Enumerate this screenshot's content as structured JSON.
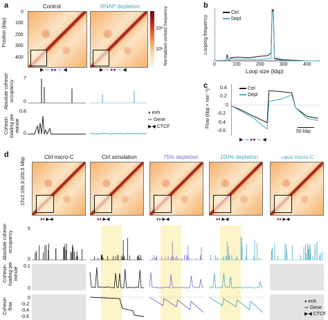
{
  "panel_a": {
    "label": "a",
    "headers": [
      "Control",
      "RNAP depletion"
    ],
    "y_axis_label": "Position (kbp)",
    "y_ticks": [
      "0",
      "100",
      "200",
      "300",
      "400"
    ],
    "colorbar_label": "Normalized contact frequency",
    "colorbar_ticks": [
      "10²",
      "10¹"
    ],
    "row_labels": [
      "Absolute cohesin occupancy",
      "Cohesin loading per minute"
    ],
    "occupancy_ticks": [
      "7",
      "0"
    ],
    "loading_ticks": [
      "0.8",
      "0"
    ],
    "legend": [
      {
        "icon": "♦",
        "label": "enh"
      },
      {
        "icon": "⇨",
        "label": "Gene"
      },
      {
        "icon": "▶◀",
        "label": "CTCF"
      }
    ]
  },
  "panel_b": {
    "label": "b",
    "ylabel": "Looping frequency",
    "xlabel": "Loop size (kbp)",
    "x_ticks": [
      "0",
      "100",
      "200",
      "300",
      "400"
    ],
    "legend": [
      "Ctrl",
      "Depl"
    ]
  },
  "panel_c": {
    "label": "c",
    "ylabel": "Flow (kbp × min⁻¹)",
    "y_ticks": [
      "0.4",
      "0.2",
      "0",
      "-0.2",
      "-0.4",
      "-0.6"
    ],
    "legend": [
      "Ctrl",
      "Depl"
    ],
    "scalebar": "50 kbp"
  },
  "panel_d": {
    "label": "d",
    "headers": [
      "Ctrl micro-C",
      "Ctrl simulation",
      "75% depletion",
      "100% depletion",
      "+aux micro-C"
    ],
    "header_colors": [
      "#111111",
      "#111111",
      "#7b68c8",
      "#4aa8c0",
      "#4aa8c0"
    ],
    "y_axis_label": "Chr2:199.3-200.5 Mbp",
    "row_labels": [
      "Absolute cohesin occupancy",
      "Cohesin loading per minute",
      "Cohesin flow"
    ],
    "occupancy_ticks": [
      "5",
      "0"
    ],
    "loading_ticks": [
      "0.1",
      "0"
    ],
    "flow_ticks": [
      "0",
      "-0.2",
      "-0.4",
      "-0.6"
    ],
    "legend": [
      {
        "icon": "♦",
        "label": "enh"
      },
      {
        "icon": "⇨",
        "label": "Gene"
      },
      {
        "icon": "▶◀",
        "label": "CTCF"
      }
    ]
  },
  "colors": {
    "ctrl": "#111111",
    "depl": "#4aa8c0",
    "depl75": "#7b68c8",
    "enh": "#8a1a5a",
    "gene": "#7b68c8",
    "shade": "#fdf5c9"
  },
  "chart_data": [
    {
      "panel": "b",
      "type": "line",
      "xlabel": "Loop size (kbp)",
      "ylabel": "Looping frequency",
      "xlim": [
        0,
        450
      ],
      "series": [
        {
          "name": "Ctrl",
          "x": [
            0,
            50,
            55,
            60,
            65,
            70,
            100,
            150,
            180,
            200,
            230,
            245,
            250,
            255,
            260,
            300,
            350,
            400,
            450
          ],
          "y": [
            0,
            0.01,
            0.12,
            0.02,
            0.01,
            0.06,
            0.07,
            0.06,
            0.08,
            0.09,
            0.1,
            0.15,
            1.0,
            1.0,
            0.05,
            0.02,
            0.01,
            0.0,
            0.0
          ]
        },
        {
          "name": "Depl",
          "x": [
            0,
            50,
            55,
            60,
            65,
            70,
            100,
            150,
            200,
            245,
            250,
            255,
            260,
            300,
            350,
            400,
            450
          ],
          "y": [
            0,
            0.01,
            0.08,
            0.02,
            0.01,
            0.04,
            0.03,
            0.03,
            0.03,
            0.05,
            0.95,
            0.95,
            0.03,
            0.01,
            0.0,
            0.0,
            0.0
          ]
        }
      ]
    },
    {
      "panel": "c",
      "type": "line",
      "ylabel": "Flow (kbp × min⁻¹)",
      "ylim": [
        -0.7,
        0.5
      ],
      "series": [
        {
          "name": "Ctrl",
          "x": [
            0,
            30,
            60,
            95,
            100,
            130,
            160,
            170,
            200,
            230
          ],
          "y": [
            0.0,
            -0.12,
            -0.25,
            -0.4,
            0.35,
            0.33,
            0.3,
            -0.05,
            -0.25,
            -0.3
          ]
        },
        {
          "name": "Depl",
          "x": [
            0,
            30,
            60,
            95,
            100,
            130,
            160,
            170,
            200,
            230
          ],
          "y": [
            0.0,
            -0.15,
            -0.3,
            -0.55,
            0.1,
            0.15,
            0.25,
            -0.05,
            -0.3,
            -0.35
          ]
        }
      ]
    }
  ]
}
